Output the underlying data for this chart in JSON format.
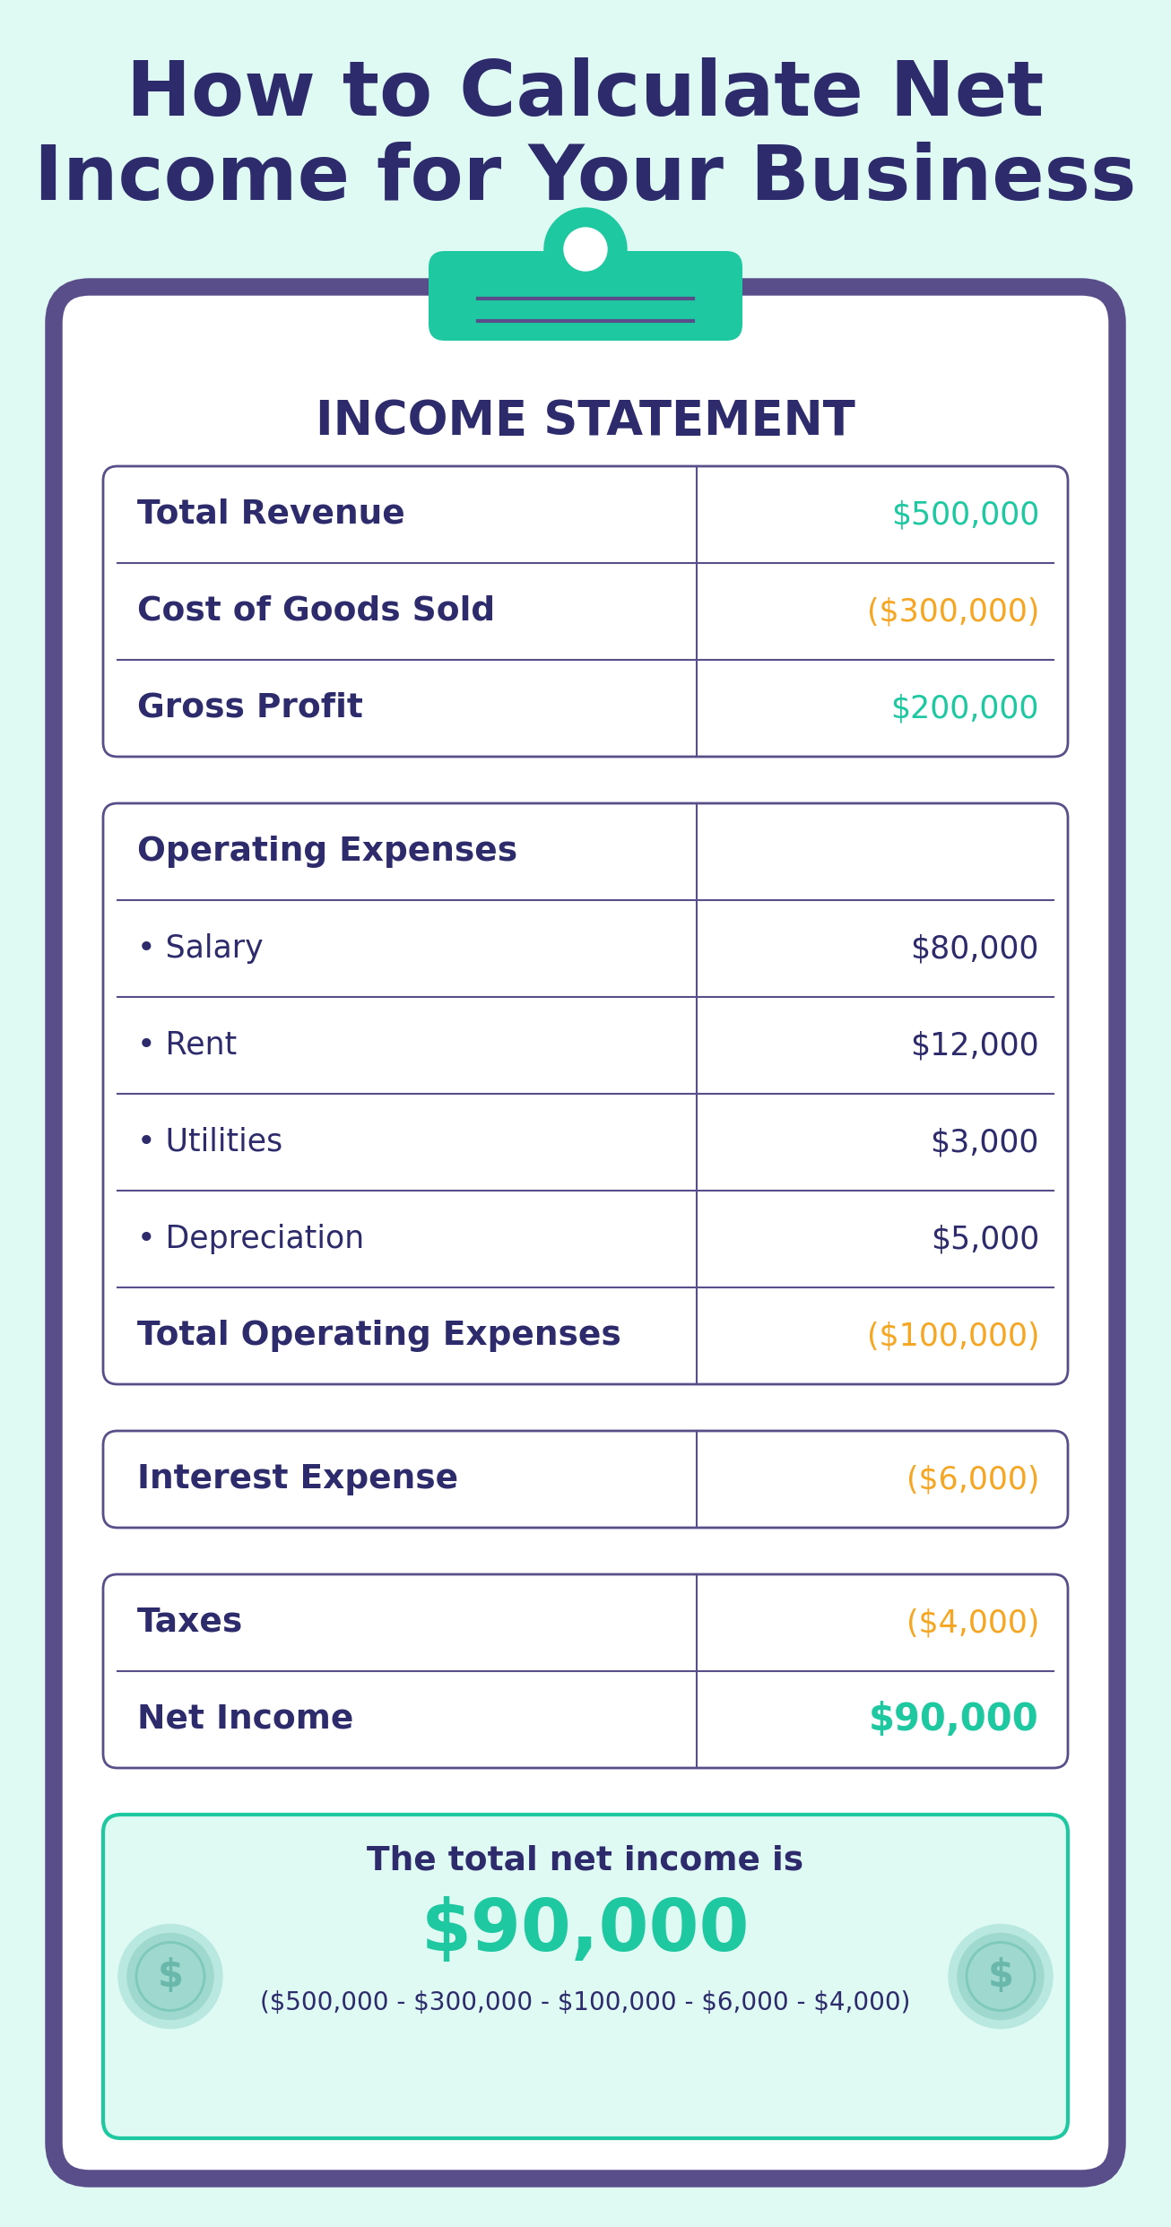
{
  "title_line1": "How to Calculate Net",
  "title_line2": "Income for Your Business",
  "title_color": "#2d2b6b",
  "bg_color": "#dff9f3",
  "clipboard_bg": "#ffffff",
  "clipboard_border": "#5a4e8a",
  "clipboard_clip_color": "#1ec8a0",
  "income_statement_title": "INCOME STATEMENT",
  "section1_rows": [
    {
      "label": "Total Revenue",
      "value": "$500,000",
      "value_color": "#1ec8a0",
      "bold_label": true,
      "bold_value": false
    },
    {
      "label": "Cost of Goods Sold",
      "value": "($300,000)",
      "value_color": "#f5a623",
      "bold_label": true,
      "bold_value": false
    },
    {
      "label": "Gross Profit",
      "value": "$200,000",
      "value_color": "#1ec8a0",
      "bold_label": true,
      "bold_value": false
    }
  ],
  "section2_rows": [
    {
      "label": "Operating Expenses",
      "value": "",
      "value_color": "#2d2b6b",
      "bold_label": true,
      "bold_value": false,
      "header": true
    },
    {
      "label": "• Salary",
      "value": "$80,000",
      "value_color": "#2d2b6b",
      "bold_label": false,
      "bold_value": false
    },
    {
      "label": "• Rent",
      "value": "$12,000",
      "value_color": "#2d2b6b",
      "bold_label": false,
      "bold_value": false
    },
    {
      "label": "• Utilities",
      "value": "$3,000",
      "value_color": "#2d2b6b",
      "bold_label": false,
      "bold_value": false
    },
    {
      "label": "• Depreciation",
      "value": "$5,000",
      "value_color": "#2d2b6b",
      "bold_label": false,
      "bold_value": false
    },
    {
      "label": "Total Operating Expenses",
      "value": "($100,000)",
      "value_color": "#f5a623",
      "bold_label": true,
      "bold_value": false
    }
  ],
  "section3_rows": [
    {
      "label": "Interest Expense",
      "value": "($6,000)",
      "value_color": "#f5a623",
      "bold_label": true,
      "bold_value": false
    }
  ],
  "section4_rows": [
    {
      "label": "Taxes",
      "value": "($4,000)",
      "value_color": "#f5a623",
      "bold_label": true,
      "bold_value": false
    },
    {
      "label": "Net Income",
      "value": "$90,000",
      "value_color": "#1ec8a0",
      "bold_label": true,
      "bold_value": true
    }
  ],
  "summary_bg": "#dff9f3",
  "summary_border": "#1ec8a0",
  "summary_line1": "The total net income is",
  "summary_line1_color": "#2d2b6b",
  "summary_line2": "$90,000",
  "summary_line2_color": "#1ec8a0",
  "summary_line3": "($500,000 - $300,000 - $100,000 - $6,000 - $4,000)",
  "summary_line3_color": "#2d2b6b",
  "label_color": "#2d2b6b",
  "divider_color": "#5a4e8a"
}
